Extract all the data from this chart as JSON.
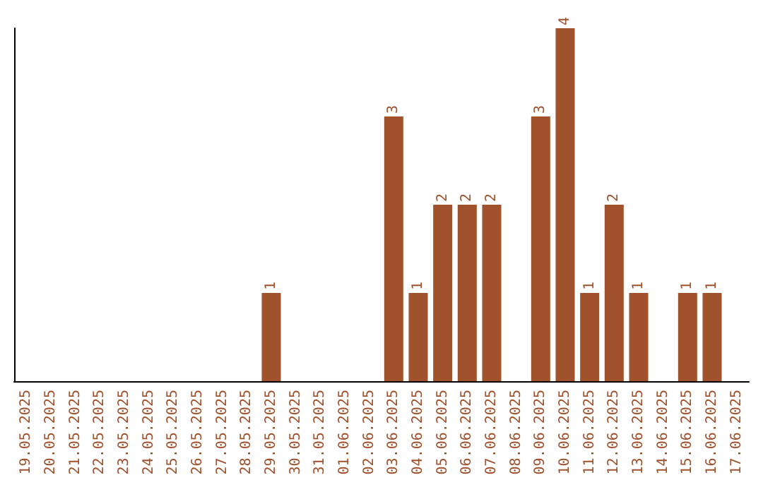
{
  "chart_data": {
    "type": "bar",
    "categories": [
      "19.05.2025",
      "20.05.2025",
      "21.05.2025",
      "22.05.2025",
      "23.05.2025",
      "24.05.2025",
      "25.05.2025",
      "26.05.2025",
      "27.05.2025",
      "28.05.2025",
      "29.05.2025",
      "30.05.2025",
      "31.05.2025",
      "01.06.2025",
      "02.06.2025",
      "03.06.2025",
      "04.06.2025",
      "05.06.2025",
      "06.06.2025",
      "07.06.2025",
      "08.06.2025",
      "09.06.2025",
      "10.06.2025",
      "11.06.2025",
      "12.06.2025",
      "13.06.2025",
      "14.06.2025",
      "15.06.2025",
      "16.06.2025",
      "17.06.2025"
    ],
    "values": [
      0,
      0,
      0,
      0,
      0,
      0,
      0,
      0,
      0,
      0,
      1,
      0,
      0,
      0,
      0,
      3,
      1,
      2,
      2,
      2,
      0,
      3,
      4,
      1,
      2,
      1,
      0,
      1,
      1,
      0
    ],
    "value_labels": [
      null,
      null,
      null,
      null,
      null,
      null,
      null,
      null,
      null,
      null,
      "1",
      null,
      null,
      null,
      null,
      "3",
      "1",
      "2",
      "2",
      "2",
      null,
      "3",
      "4",
      "1",
      "2",
      "1",
      null,
      "1",
      "1",
      null
    ],
    "color": "#a0522d"
  }
}
